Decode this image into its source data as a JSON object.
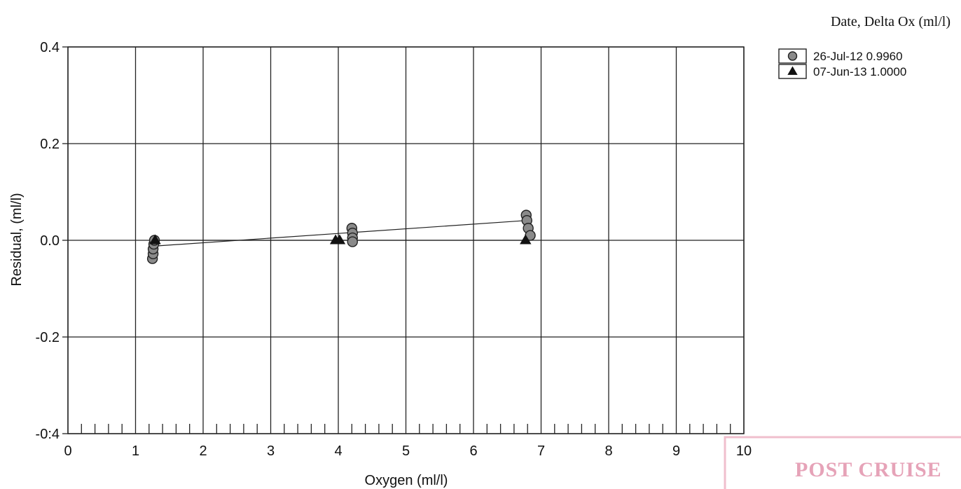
{
  "chart_data": {
    "type": "scatter",
    "xlabel": "Oxygen (ml/l)",
    "ylabel": "Residual, (ml/l)",
    "xlim": [
      0,
      10
    ],
    "ylim": [
      -0.4,
      0.4
    ],
    "x_ticks": [
      "0",
      "1",
      "2",
      "3",
      "4",
      "5",
      "6",
      "7",
      "8",
      "9",
      "10"
    ],
    "y_ticks": [
      "0.4",
      "0.2",
      "0.0",
      "-0.2",
      "-0:4"
    ],
    "y_tick_values": [
      0.4,
      0.2,
      0.0,
      -0.2,
      -0.4
    ],
    "grid": true,
    "legend": {
      "title": "Date, Delta Ox (ml/l)",
      "placement": "top-right"
    },
    "series": [
      {
        "name": "26-Jul-12 0.9960",
        "marker": "circle",
        "color": "#8a8a8a",
        "points": [
          {
            "x": 1.25,
            "y": -0.038
          },
          {
            "x": 1.26,
            "y": -0.028
          },
          {
            "x": 1.26,
            "y": -0.018
          },
          {
            "x": 1.27,
            "y": -0.008
          },
          {
            "x": 1.28,
            "y": 0.0
          },
          {
            "x": 4.2,
            "y": 0.025
          },
          {
            "x": 4.21,
            "y": 0.015
          },
          {
            "x": 4.21,
            "y": 0.005
          },
          {
            "x": 4.21,
            "y": -0.003
          },
          {
            "x": 6.78,
            "y": 0.052
          },
          {
            "x": 6.79,
            "y": 0.041
          },
          {
            "x": 6.81,
            "y": 0.025
          },
          {
            "x": 6.84,
            "y": 0.01
          }
        ],
        "fit": [
          [
            1.28,
            -0.012
          ],
          [
            6.79,
            0.041
          ]
        ]
      },
      {
        "name": "07-Jun-13 1.0000",
        "marker": "triangle",
        "color": "#111111",
        "points": [
          {
            "x": 1.29,
            "y": 0.0
          },
          {
            "x": 3.96,
            "y": 0.0
          },
          {
            "x": 4.02,
            "y": 0.0
          },
          {
            "x": 6.77,
            "y": 0.0
          }
        ],
        "fit": [
          [
            1.29,
            0.0
          ],
          [
            6.77,
            0.0
          ]
        ]
      }
    ]
  },
  "stamp": {
    "text": "POST CRUISE"
  }
}
